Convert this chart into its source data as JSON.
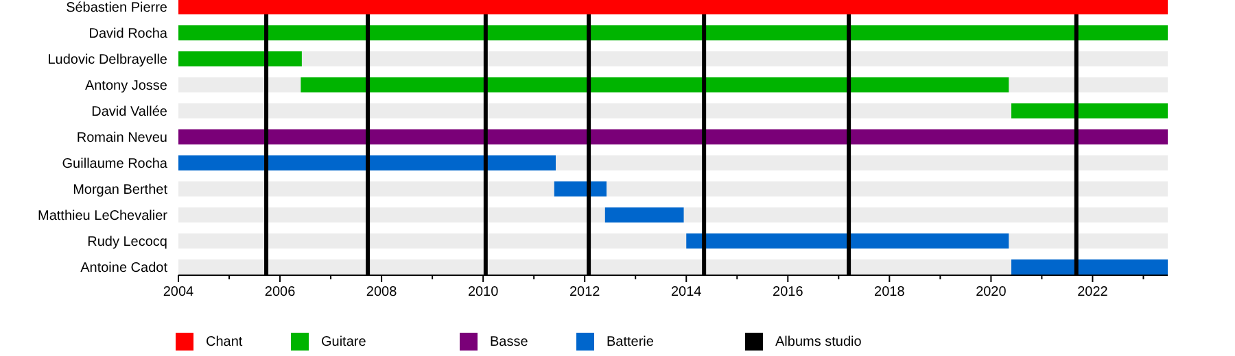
{
  "chart_data": {
    "type": "bar",
    "orientation": "horizontal",
    "categories": [
      "Sébastien Pierre",
      "David Rocha",
      "Ludovic Delbrayelle",
      "Antony Josse",
      "David Vallée",
      "Romain Neveu",
      "Guillaume Rocha",
      "Morgan Berthet",
      "Matthieu LeChevalier",
      "Rudy Lecocq",
      "Antoine Cadot"
    ],
    "series": [
      {
        "name": "Chant",
        "color": "#ff0000",
        "base": [
          2004,
          null,
          null,
          null,
          null,
          null,
          null,
          null,
          null,
          null,
          null
        ],
        "values": [
          19.48,
          null,
          null,
          null,
          null,
          null,
          null,
          null,
          null,
          null,
          null
        ]
      },
      {
        "name": "Guitare",
        "color": "#00b400",
        "base": [
          null,
          2004,
          2004,
          2006.41,
          2020.4,
          null,
          null,
          null,
          null,
          null,
          null
        ],
        "values": [
          null,
          19.48,
          2.43,
          13.94,
          3.08,
          null,
          null,
          null,
          null,
          null,
          null
        ]
      },
      {
        "name": "Basse",
        "color": "#7a0078",
        "base": [
          null,
          null,
          null,
          null,
          null,
          2004,
          null,
          null,
          null,
          null,
          null
        ],
        "values": [
          null,
          null,
          null,
          null,
          null,
          19.48,
          null,
          null,
          null,
          null,
          null
        ]
      },
      {
        "name": "Batterie",
        "color": "#0066cc",
        "base": [
          null,
          null,
          null,
          null,
          null,
          null,
          2004,
          2011.4,
          2012.4,
          2014,
          2020.4
        ],
        "values": [
          null,
          null,
          null,
          null,
          null,
          null,
          7.43,
          1.03,
          1.55,
          6.35,
          3.08
        ]
      }
    ],
    "ref_lines": [
      {
        "axis": "x",
        "value": 2005.73,
        "color": "#000000",
        "label": "Albums studio"
      },
      {
        "axis": "x",
        "value": 2007.73,
        "color": "#000000"
      },
      {
        "axis": "x",
        "value": 2010.05,
        "color": "#000000"
      },
      {
        "axis": "x",
        "value": 2012.08,
        "color": "#000000"
      },
      {
        "axis": "x",
        "value": 2014.35,
        "color": "#000000"
      },
      {
        "axis": "x",
        "value": 2017.2,
        "color": "#000000"
      },
      {
        "axis": "x",
        "value": 2021.68,
        "color": "#000000"
      }
    ],
    "xlim": [
      2004,
      2023.48
    ],
    "xticks": [
      2004,
      {
        "value": 2005,
        "label": null
      },
      2006,
      {
        "value": 2007,
        "label": null
      },
      2008,
      {
        "value": 2009,
        "label": null
      },
      2010,
      {
        "value": 2011,
        "label": null
      },
      2012,
      {
        "value": 2013,
        "label": null
      },
      2014,
      {
        "value": 2015,
        "label": null
      },
      2016,
      {
        "value": 2017,
        "label": null
      },
      2018,
      {
        "value": 2019,
        "label": null
      },
      2020,
      {
        "value": 2021,
        "label": null
      },
      2022,
      {
        "value": 2023,
        "label": null
      }
    ],
    "legend": "bottom"
  }
}
